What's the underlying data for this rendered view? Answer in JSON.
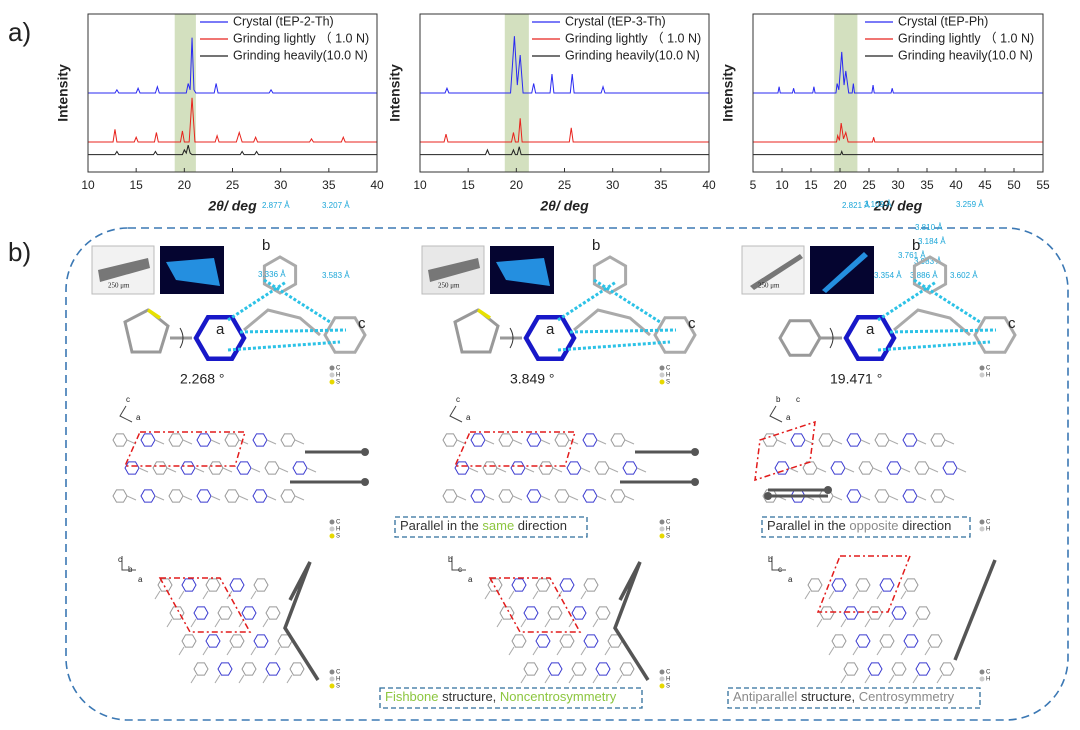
{
  "panel_labels": [
    "a)",
    "b)"
  ],
  "chart_data": [
    {
      "type": "line",
      "x_label": "2θ/ deg",
      "y_label": "Intensity",
      "xlim": [
        10,
        40
      ],
      "xticks": [
        10,
        15,
        20,
        25,
        30,
        35,
        40
      ],
      "ylim": [
        0,
        100
      ],
      "highlight": [
        19,
        21.2
      ],
      "highlight_color": "#d3e0bf",
      "series": [
        {
          "name": "Crystal (tEP-2-Th)",
          "color": "#2a2af2",
          "x": [
            10,
            12.8,
            13,
            13.2,
            15,
            15.2,
            15.4,
            17,
            17.2,
            17.4,
            20.2,
            20.4,
            20.6,
            20.8,
            21,
            21.2,
            23.1,
            23.3,
            23.5,
            26,
            28.8,
            29,
            29.2,
            40
          ],
          "values": [
            50,
            50,
            52,
            50,
            50,
            53,
            50,
            50,
            54,
            50,
            50,
            56,
            52,
            85,
            52,
            50,
            50,
            56,
            50,
            50,
            50,
            52,
            50,
            50
          ]
        },
        {
          "name": "Grinding lightly （ 1.0 N)",
          "color": "#e8231d",
          "x": [
            10,
            12.6,
            12.8,
            13,
            14.8,
            15,
            15.2,
            16.9,
            17.1,
            17.3,
            19.6,
            19.8,
            20,
            20.5,
            20.8,
            21.1,
            23.2,
            23.4,
            23.6,
            25.4,
            25.7,
            26,
            27.2,
            27.4,
            27.6,
            33,
            33.2,
            33.4,
            36.3,
            36.5,
            36.7,
            40
          ],
          "values": [
            19,
            19,
            27,
            19,
            19,
            22,
            19,
            19,
            25,
            19,
            19,
            26,
            19,
            19,
            47,
            19,
            19,
            23,
            19,
            19,
            25,
            19,
            19,
            22,
            19,
            19,
            21,
            19,
            19,
            22,
            19,
            19
          ]
        },
        {
          "name": "Grinding heavily(10.0 N)",
          "color": "#222222",
          "x": [
            10,
            12.8,
            13,
            13.2,
            16.8,
            17,
            17.2,
            19.8,
            20,
            20.2,
            20.4,
            20.6,
            20.8,
            25.8,
            26,
            26.2,
            27.3,
            27.5,
            27.7,
            40
          ],
          "values": [
            11,
            11,
            13,
            11,
            11,
            13,
            11,
            11,
            14,
            12,
            17,
            12,
            11,
            11,
            13,
            11,
            11,
            13,
            11,
            11
          ]
        }
      ]
    },
    {
      "type": "line",
      "x_label": "2θ/ deg",
      "y_label": "Intensity",
      "xlim": [
        10,
        40
      ],
      "xticks": [
        10,
        15,
        20,
        25,
        30,
        35,
        40
      ],
      "ylim": [
        0,
        100
      ],
      "highlight": [
        18.8,
        21.3
      ],
      "highlight_color": "#d3e0bf",
      "series": [
        {
          "name": "Crystal (tEP-3-Th)",
          "color": "#2a2af2",
          "x": [
            10,
            12.6,
            12.8,
            13,
            19.4,
            19.8,
            20.1,
            20.4,
            20.7,
            21.6,
            21.8,
            22,
            23.5,
            23.7,
            23.9,
            25.6,
            25.8,
            26,
            28.8,
            29,
            29.2,
            40
          ],
          "values": [
            50,
            50,
            53,
            50,
            50,
            86,
            55,
            74,
            50,
            50,
            56,
            50,
            50,
            62,
            50,
            50,
            62,
            50,
            50,
            54,
            50,
            50
          ]
        },
        {
          "name": "Grinding lightly （ 1.0 N)",
          "color": "#e8231d",
          "x": [
            10,
            12.5,
            12.7,
            12.9,
            19.5,
            19.7,
            19.9,
            20.2,
            20.4,
            20.6,
            25.5,
            25.7,
            25.9,
            40
          ],
          "values": [
            19,
            19,
            24,
            19,
            19,
            25,
            19,
            19,
            34,
            19,
            19,
            28,
            19,
            19
          ]
        },
        {
          "name": "Grinding heavily(10.0 N)",
          "color": "#222222",
          "x": [
            10,
            16.8,
            17,
            17.2,
            19.5,
            19.7,
            19.9,
            20.1,
            20.3,
            20.5,
            40
          ],
          "values": [
            11,
            11,
            14,
            11,
            11,
            14,
            11,
            11,
            16,
            11,
            11
          ]
        }
      ]
    },
    {
      "type": "line",
      "x_label": "2θ/ deg",
      "y_label": "Intensity",
      "xlim": [
        5,
        55
      ],
      "xticks": [
        5,
        10,
        15,
        20,
        25,
        30,
        35,
        40,
        45,
        50,
        55
      ],
      "ylim": [
        0,
        100
      ],
      "highlight": [
        19,
        23
      ],
      "highlight_color": "#d3e0bf",
      "series": [
        {
          "name": "Crystal (tEP-Ph)",
          "color": "#2a2af2",
          "x": [
            5,
            9.3,
            9.5,
            9.7,
            11.8,
            12,
            12.2,
            15.3,
            15.5,
            15.7,
            19.3,
            19.5,
            19.8,
            20.3,
            20.7,
            21,
            21.5,
            22.1,
            22.3,
            22.5,
            25.5,
            25.7,
            25.9,
            28.8,
            29,
            29.2,
            55
          ],
          "values": [
            50,
            50,
            54,
            50,
            50,
            53,
            50,
            50,
            54,
            50,
            50,
            56,
            52,
            76,
            55,
            64,
            50,
            50,
            56,
            50,
            50,
            55,
            50,
            50,
            53,
            50,
            50
          ]
        },
        {
          "name": "Grinding lightly （ 1.0 N)",
          "color": "#e8231d",
          "x": [
            5,
            19.4,
            19.6,
            19.9,
            20.2,
            20.6,
            21,
            21.4,
            25.6,
            25.8,
            26,
            55
          ],
          "values": [
            19,
            19,
            23,
            20,
            31,
            21,
            25,
            19,
            19,
            22,
            19,
            19
          ]
        },
        {
          "name": "Grinding heavily(10.0 N)",
          "color": "#222222",
          "x": [
            5,
            20.1,
            20.3,
            20.5,
            55
          ],
          "values": [
            11,
            11,
            13,
            11,
            11
          ]
        }
      ]
    }
  ],
  "molecules": [
    {
      "scale": "250 μm",
      "angle": "2.268 °",
      "rings": [
        "a",
        "b",
        "c"
      ],
      "distances": [
        "2.877 Å",
        "3.207 Å",
        "3.336 Å",
        "3.583 Å"
      ],
      "atoms": [
        "C",
        "H",
        "S"
      ],
      "axes_top": [
        "c",
        "a"
      ],
      "axes_bottom": [
        "c",
        "b",
        "a"
      ]
    },
    {
      "scale": "250 μm",
      "angle": "3.849 °",
      "rings": [
        "a",
        "b",
        "c"
      ],
      "distances": [
        "2.821 Å",
        "3.184 Å",
        "3.983 Å",
        "3.335 Å",
        "3.886 Å"
      ],
      "atoms": [
        "C",
        "H",
        "S"
      ],
      "axes_top": [
        "c",
        "a"
      ],
      "axes_bottom": [
        "b",
        "c",
        "a"
      ]
    },
    {
      "scale": "250 μm",
      "angle": "19.471 °",
      "rings": [
        "a",
        "b",
        "c"
      ],
      "distances": [
        "3.109 Å",
        "3.259 Å",
        "3.810 Å",
        "3.761 Å",
        "3.354 Å",
        "3.602 Å"
      ],
      "atoms": [
        "C",
        "H"
      ],
      "axes_top": [
        "b",
        "a",
        "c"
      ],
      "axes_bottom": [
        "b",
        "c",
        "a"
      ]
    }
  ],
  "captions": [
    [
      {
        "text": "Parallel",
        "color": "#333333"
      },
      {
        "text": " in the ",
        "color": "#333333"
      },
      {
        "text": "same",
        "color": "#8cc63f"
      },
      {
        "text": " direction",
        "color": "#333333"
      }
    ],
    [
      {
        "text": "Parallel",
        "color": "#333333"
      },
      {
        "text": " in the ",
        "color": "#333333"
      },
      {
        "text": "opposite",
        "color": "#8a8a8a"
      },
      {
        "text": " direction",
        "color": "#333333"
      }
    ],
    [
      {
        "text": "Fishbone",
        "color": "#8cc63f"
      },
      {
        "text": " structure, ",
        "color": "#333333"
      },
      {
        "text": "Noncentrosymmetry",
        "color": "#8cc63f"
      }
    ],
    [
      {
        "text": "Antiparallel",
        "color": "#8a8a8a"
      },
      {
        "text": " structure, ",
        "color": "#333333"
      },
      {
        "text": "Centrosymmetry",
        "color": "#8a8a8a"
      }
    ]
  ]
}
